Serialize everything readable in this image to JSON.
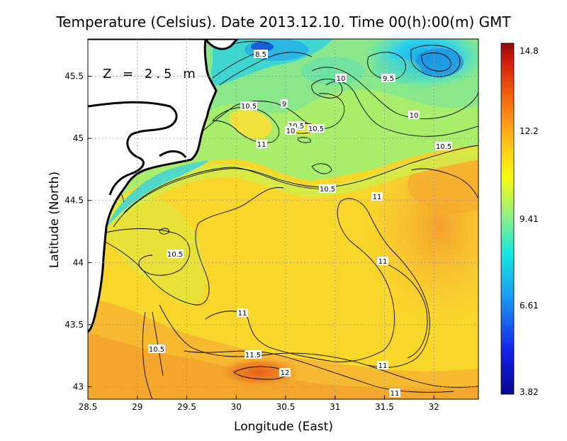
{
  "title": "Temperature (Celsius). Date 2013.12.10. Time 00(h):00(m)  GMT",
  "depth_label": "Z = 2.5 m",
  "x_axis": {
    "label": "Longitude (East)",
    "ticks": [
      "28.5",
      "29",
      "29.5",
      "30",
      "30.5",
      "31",
      "31.5",
      "32"
    ],
    "range": [
      28.5,
      32.45
    ]
  },
  "y_axis": {
    "label": "Latitude (North)",
    "ticks": [
      "43",
      "43.5",
      "44",
      "44.5",
      "45",
      "45.5"
    ],
    "range": [
      42.9,
      45.8
    ]
  },
  "colorbar": {
    "labels": [
      "14.8",
      "12.2",
      "9.41",
      "6.61",
      "3.82"
    ],
    "min": 3.82,
    "max": 14.8
  },
  "contour_labels": [
    "8.5",
    "10",
    "9.5",
    "10",
    "10.5",
    "9",
    "10.5",
    "10",
    "10.5",
    "10.5",
    "11",
    "10.5",
    "11",
    "10.5",
    "11",
    "11",
    "10.5",
    "11.5",
    "12",
    "11",
    "11"
  ],
  "colors": {
    "coast": "#000000",
    "land": "#ffffff",
    "grid": "#9a9a9a"
  }
}
